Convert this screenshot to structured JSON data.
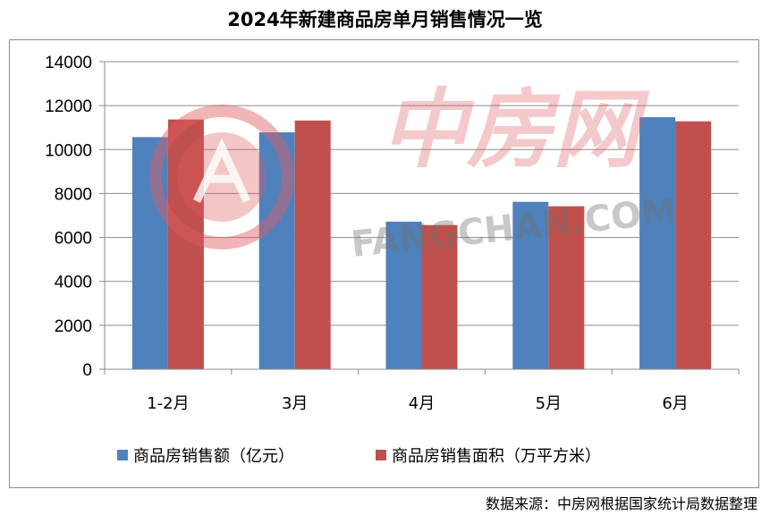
{
  "chart_data": {
    "type": "bar",
    "title": "2024年新建商品房单月销售情况一览",
    "categories": [
      "1-2月",
      "3月",
      "4月",
      "5月",
      "6月"
    ],
    "series": [
      {
        "name": "商品房销售额（亿元）",
        "color": "#4f81bd",
        "values": [
          10566,
          10784,
          6719,
          7621,
          11474
        ]
      },
      {
        "name": "商品房销售面积（万平方米）",
        "color": "#c0504d",
        "values": [
          11369,
          11323,
          6564,
          7420,
          11286
        ]
      }
    ],
    "ylim": [
      0,
      14000
    ],
    "yticks": [
      0,
      2000,
      4000,
      6000,
      8000,
      10000,
      12000,
      14000
    ],
    "grid": true,
    "legend": "bottom"
  },
  "watermark": {
    "text_cn": "中房网",
    "text_en": "FANGCHAN.COM"
  },
  "source": "数据来源：中房网根据国家统计局数据整理"
}
